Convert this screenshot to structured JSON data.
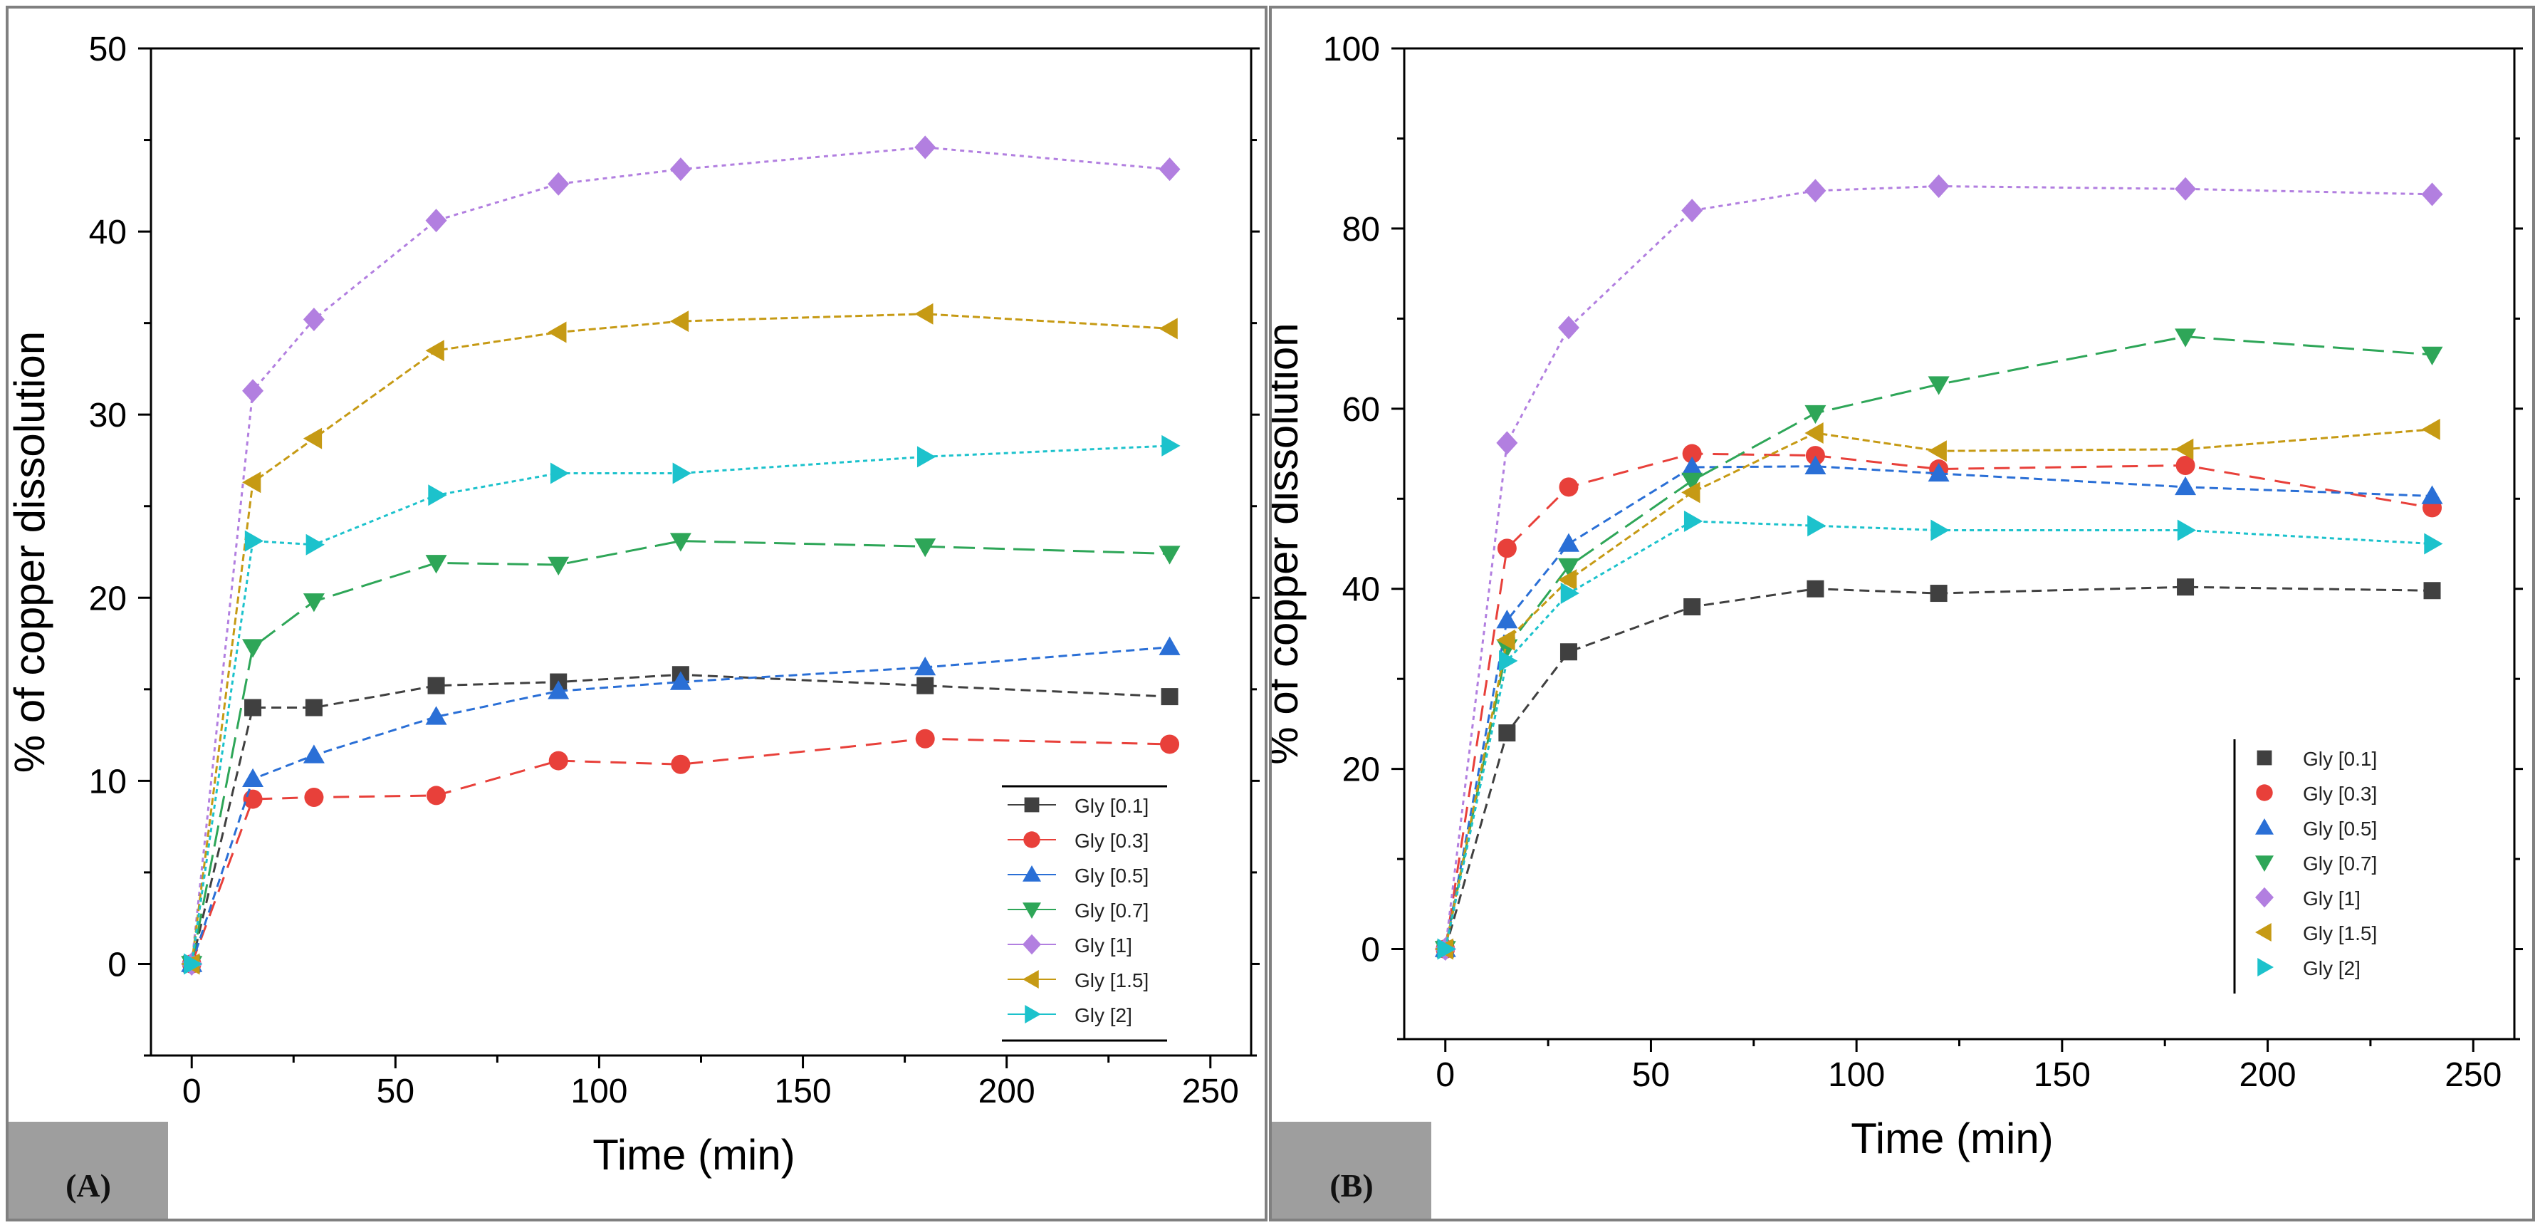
{
  "colors": {
    "gly01": "#404040",
    "gly03": "#e8403a",
    "gly05": "#2a6fd6",
    "gly07": "#2ea658",
    "gly1": "#b27fe0",
    "gly15": "#c69a14",
    "gly2": "#1cc2cc"
  },
  "chart_data": [
    {
      "type": "line",
      "panel_label": "(A)",
      "title": "",
      "xlabel": "Time (min)",
      "ylabel": "% of copper dissolution",
      "xlim": [
        -10,
        260
      ],
      "ylim": [
        -5,
        50
      ],
      "xticks": [
        0,
        50,
        100,
        150,
        200,
        250
      ],
      "yticks": [
        0,
        10,
        20,
        30,
        40,
        50
      ],
      "legend_position": "bottom-right",
      "x": [
        0,
        15,
        30,
        60,
        90,
        120,
        180,
        240
      ],
      "series": [
        {
          "name": "Gly [0.1]",
          "marker": "square",
          "color": "#404040",
          "values": [
            0,
            14.0,
            14.0,
            15.2,
            15.4,
            15.8,
            15.2,
            14.6
          ]
        },
        {
          "name": "Gly [0.3]",
          "marker": "circle",
          "color": "#e8403a",
          "values": [
            0,
            9.0,
            9.1,
            9.2,
            11.1,
            10.9,
            12.3,
            12.0
          ]
        },
        {
          "name": "Gly [0.5]",
          "marker": "triangle-up",
          "color": "#2a6fd6",
          "values": [
            0,
            10.1,
            11.4,
            13.5,
            14.9,
            15.4,
            16.2,
            17.3
          ]
        },
        {
          "name": "Gly [0.7]",
          "marker": "triangle-down",
          "color": "#2ea658",
          "values": [
            0,
            17.3,
            19.8,
            21.9,
            21.8,
            23.1,
            22.8,
            22.4
          ]
        },
        {
          "name": "Gly [1]",
          "marker": "diamond",
          "color": "#b27fe0",
          "values": [
            0,
            31.3,
            35.2,
            40.6,
            42.6,
            43.4,
            44.6,
            43.4
          ]
        },
        {
          "name": "Gly [1.5]",
          "marker": "triangle-left",
          "color": "#c69a14",
          "values": [
            0,
            26.3,
            28.7,
            33.5,
            34.5,
            35.1,
            35.5,
            34.7
          ]
        },
        {
          "name": "Gly [2]",
          "marker": "triangle-right",
          "color": "#1cc2cc",
          "values": [
            0,
            23.1,
            22.9,
            25.6,
            26.8,
            26.8,
            27.7,
            28.3
          ]
        }
      ]
    },
    {
      "type": "line",
      "panel_label": "(B)",
      "title": "",
      "xlabel": "Time (min)",
      "ylabel": "% of copper dissolution",
      "xlim": [
        -10,
        260
      ],
      "ylim": [
        -10,
        100
      ],
      "xticks": [
        0,
        50,
        100,
        150,
        200,
        250
      ],
      "yticks": [
        0,
        20,
        40,
        60,
        80,
        100
      ],
      "legend_position": "bottom-right",
      "x": [
        0,
        15,
        30,
        60,
        90,
        120,
        180,
        240
      ],
      "series": [
        {
          "name": "Gly [0.1]",
          "marker": "square",
          "color": "#404040",
          "values": [
            0,
            24.0,
            33.0,
            38.0,
            40.0,
            39.5,
            40.2,
            39.8
          ]
        },
        {
          "name": "Gly [0.3]",
          "marker": "circle",
          "color": "#e8403a",
          "values": [
            0,
            44.5,
            51.3,
            55.0,
            54.8,
            53.3,
            53.7,
            49.0
          ]
        },
        {
          "name": "Gly [0.5]",
          "marker": "triangle-up",
          "color": "#2a6fd6",
          "values": [
            0,
            36.5,
            45.0,
            53.5,
            53.6,
            52.8,
            51.3,
            50.3
          ]
        },
        {
          "name": "Gly [0.7]",
          "marker": "triangle-down",
          "color": "#2ea658",
          "values": [
            0,
            33.5,
            42.5,
            52.0,
            59.5,
            62.7,
            68.0,
            66.0
          ]
        },
        {
          "name": "Gly [1]",
          "marker": "diamond",
          "color": "#b27fe0",
          "values": [
            0,
            56.2,
            69.0,
            82.0,
            84.2,
            84.7,
            84.4,
            83.8
          ]
        },
        {
          "name": "Gly [1.5]",
          "marker": "triangle-left",
          "color": "#c69a14",
          "values": [
            0,
            34.3,
            41.0,
            50.7,
            57.3,
            55.3,
            55.5,
            57.7
          ]
        },
        {
          "name": "Gly [2]",
          "marker": "triangle-right",
          "color": "#1cc2cc",
          "values": [
            0,
            32.0,
            39.5,
            47.5,
            47.0,
            46.5,
            46.5,
            45.0
          ]
        }
      ]
    }
  ]
}
